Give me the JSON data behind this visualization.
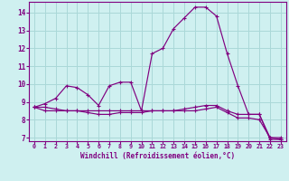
{
  "xlabel": "Windchill (Refroidissement éolien,°C)",
  "xlim": [
    -0.5,
    23.5
  ],
  "ylim": [
    6.8,
    14.6
  ],
  "yticks": [
    7,
    8,
    9,
    10,
    11,
    12,
    13,
    14
  ],
  "xticks": [
    0,
    1,
    2,
    3,
    4,
    5,
    6,
    7,
    8,
    9,
    10,
    11,
    12,
    13,
    14,
    15,
    16,
    17,
    18,
    19,
    20,
    21,
    22,
    23
  ],
  "bg_color": "#cff0f0",
  "grid_color": "#aad8d8",
  "line_color": "#800080",
  "line1_x": [
    0,
    1,
    2,
    3,
    4,
    5,
    6,
    7,
    8,
    9,
    10,
    11,
    12,
    13,
    14,
    15,
    16,
    17,
    18,
    19,
    20,
    21,
    22,
    23
  ],
  "line1_y": [
    8.7,
    8.9,
    9.2,
    9.9,
    9.8,
    9.4,
    8.8,
    9.9,
    10.1,
    10.1,
    8.5,
    11.7,
    12.0,
    13.1,
    13.7,
    14.3,
    14.3,
    13.8,
    11.7,
    9.9,
    8.3,
    8.3,
    6.9,
    6.9
  ],
  "line2_x": [
    0,
    1,
    2,
    3,
    4,
    5,
    6,
    7,
    8,
    9,
    10,
    11,
    12,
    13,
    14,
    15,
    16,
    17,
    18,
    19,
    20,
    21,
    22,
    23
  ],
  "line2_y": [
    8.7,
    8.5,
    8.5,
    8.5,
    8.5,
    8.5,
    8.5,
    8.5,
    8.5,
    8.5,
    8.5,
    8.5,
    8.5,
    8.5,
    8.6,
    8.7,
    8.8,
    8.8,
    8.5,
    8.3,
    8.3,
    8.3,
    7.0,
    7.0
  ],
  "line3_x": [
    0,
    1,
    2,
    3,
    4,
    5,
    6,
    7,
    8,
    9,
    10,
    11,
    12,
    13,
    14,
    15,
    16,
    17,
    18,
    19,
    20,
    21,
    22,
    23
  ],
  "line3_y": [
    8.7,
    8.7,
    8.6,
    8.5,
    8.5,
    8.4,
    8.3,
    8.3,
    8.4,
    8.4,
    8.4,
    8.5,
    8.5,
    8.5,
    8.5,
    8.5,
    8.6,
    8.7,
    8.4,
    8.1,
    8.1,
    8.0,
    7.0,
    6.9
  ]
}
